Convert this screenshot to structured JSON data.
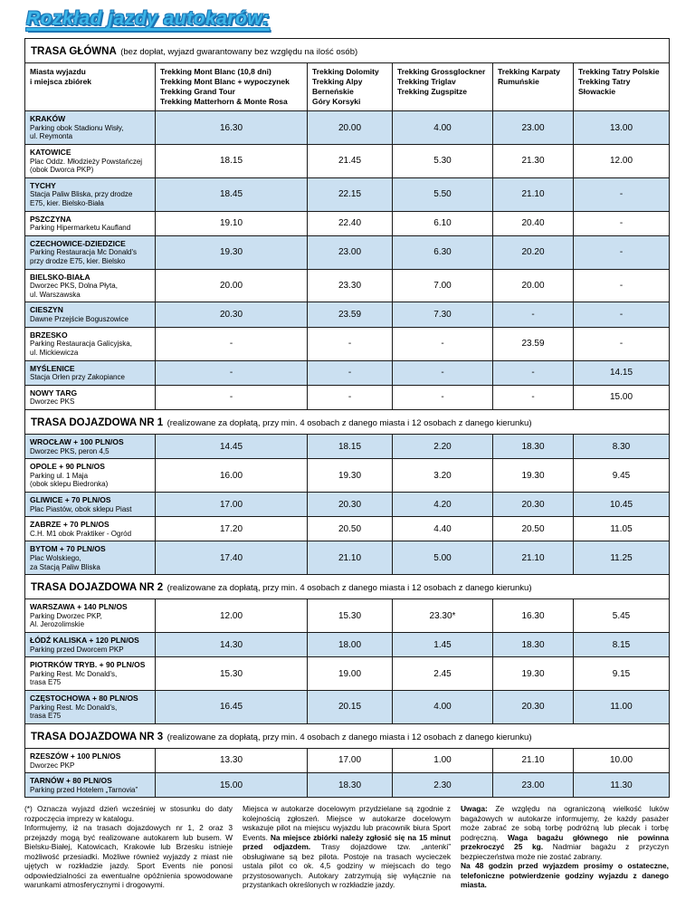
{
  "title": "Rozkład jazdy autokarów:",
  "table": {
    "main_section": {
      "title": "TRASA GŁÓWNA",
      "subtitle": "(bez dopłat, wyjazd gwarantowany bez względu na ilość osób)"
    },
    "columns": [
      "Miasta wyjazdu\ni miejsca zbiórek",
      "Trekking Mont Blanc (10,8 dni)\nTrekking Mont Blanc + wypoczynek\nTrekking Grand Tour\nTrekking Matterhorn & Monte Rosa",
      "Trekking Dolomity\nTrekking Alpy Berneńskie\nGóry Korsyki",
      "Trekking Grossglockner\nTrekking Triglav\nTrekking Zugspitze",
      "Trekking Karpaty\nRumuńskie",
      "Trekking Tatry Polskie\nTrekking Tatry Słowackie"
    ],
    "colors": {
      "zebra_blue": "#cbe0f1",
      "zebra_white": "#ffffff"
    },
    "sections": [
      {
        "header": null,
        "rows": [
          {
            "city": "KRAKÓW",
            "place": "Parking obok Stadionu Wisły,\nul. Reymonta",
            "values": [
              "16.30",
              "20.00",
              "4.00",
              "23.00",
              "13.00"
            ]
          },
          {
            "city": "KATOWICE",
            "place": "Plac Oddz. Młodzieży Powstańczej\n(obok Dworca PKP)",
            "values": [
              "18.15",
              "21.45",
              "5.30",
              "21.30",
              "12.00"
            ]
          },
          {
            "city": "TYCHY",
            "place": "Stacja Paliw Bliska, przy drodze\nE75, kier. Bielsko-Biała",
            "values": [
              "18.45",
              "22.15",
              "5.50",
              "21.10",
              "-"
            ]
          },
          {
            "city": "PSZCZYNA",
            "place": "Parking Hipermarketu Kaufland",
            "values": [
              "19.10",
              "22.40",
              "6.10",
              "20.40",
              "-"
            ]
          },
          {
            "city": "CZECHOWICE-DZIEDZICE",
            "place": "Parking Restauracja Mc Donald's\nprzy drodze E75, kier. Bielsko",
            "values": [
              "19.30",
              "23.00",
              "6.30",
              "20.20",
              "-"
            ]
          },
          {
            "city": "BIELSKO-BIAŁA",
            "place": "Dworzec PKS, Dolna Płyta,\nul. Warszawska",
            "values": [
              "20.00",
              "23.30",
              "7.00",
              "20.00",
              "-"
            ]
          },
          {
            "city": "CIESZYN",
            "place": "Dawne Przejście Boguszowice",
            "values": [
              "20.30",
              "23.59",
              "7.30",
              "-",
              "-"
            ]
          },
          {
            "city": "BRZESKO",
            "place": "Parking Restauracja Galicyjska,\nul. Mickiewicza",
            "values": [
              "-",
              "-",
              "-",
              "23.59",
              "-"
            ]
          },
          {
            "city": "MYŚLENICE",
            "place": "Stacja Orlen przy Zakopiance",
            "values": [
              "-",
              "-",
              "-",
              "-",
              "14.15"
            ]
          },
          {
            "city": "NOWY TARG",
            "place": "Dworzec PKS",
            "values": [
              "-",
              "-",
              "-",
              "-",
              "15.00"
            ]
          }
        ]
      },
      {
        "header": {
          "title": "TRASA DOJAZDOWA NR 1",
          "subtitle": "(realizowane za dopłatą, przy min. 4 osobach z danego miasta i 12 osobach z danego kierunku)"
        },
        "rows": [
          {
            "city": "WROCŁAW + 100 PLN/OS",
            "place": "Dworzec PKS, peron 4,5",
            "values": [
              "14.45",
              "18.15",
              "2.20",
              "18.30",
              "8.30"
            ]
          },
          {
            "city": "OPOLE + 90 PLN/OS",
            "place": "Parking ul. 1 Maja\n(obok sklepu Biedronka)",
            "values": [
              "16.00",
              "19.30",
              "3.20",
              "19.30",
              "9.45"
            ]
          },
          {
            "city": "GLIWICE + 70 PLN/OS",
            "place": "Plac Piastów, obok sklepu Piast",
            "values": [
              "17.00",
              "20.30",
              "4.20",
              "20.30",
              "10.45"
            ]
          },
          {
            "city": "ZABRZE + 70 PLN/OS",
            "place": "C.H. M1 obok Praktiker - Ogród",
            "values": [
              "17.20",
              "20.50",
              "4.40",
              "20.50",
              "11.05"
            ]
          },
          {
            "city": "BYTOM + 70 PLN/OS",
            "place": "Plac Wolskiego,\nza Stacją Paliw Bliska",
            "values": [
              "17.40",
              "21.10",
              "5.00",
              "21.10",
              "11.25"
            ]
          }
        ]
      },
      {
        "header": {
          "title": "TRASA DOJAZDOWA NR 2",
          "subtitle": "(realizowane za dopłatą, przy min. 4 osobach z danego miasta i 12 osobach z danego kierunku)"
        },
        "rows": [
          {
            "city": "WARSZAWA + 140 PLN/OS",
            "place": "Parking Dworzec PKP,\nAl. Jerozolimskie",
            "values": [
              "12.00",
              "15.30",
              "23.30*",
              "16.30",
              "5.45"
            ]
          },
          {
            "city": "ŁÓDŹ KALISKA + 120 PLN/OS",
            "place": "Parking przed Dworcem PKP",
            "values": [
              "14.30",
              "18.00",
              "1.45",
              "18.30",
              "8.15"
            ]
          },
          {
            "city": "PIOTRKÓW TRYB. + 90 PLN/OS",
            "place": "Parking Rest. Mc Donald's,\ntrasa E75",
            "values": [
              "15.30",
              "19.00",
              "2.45",
              "19.30",
              "9.15"
            ]
          },
          {
            "city": "CZĘSTOCHOWA + 80 PLN/OS",
            "place": "Parking Rest. Mc Donald's,\ntrasa E75",
            "values": [
              "16.45",
              "20.15",
              "4.00",
              "20.30",
              "11.00"
            ]
          }
        ]
      },
      {
        "header": {
          "title": "TRASA DOJAZDOWA NR 3",
          "subtitle": "(realizowane za dopłatą, przy min. 4 osobach z danego miasta i 12 osobach z danego kierunku)"
        },
        "rows": [
          {
            "city": "RZESZÓW + 100 PLN/OS",
            "place": "Dworzec PKP",
            "values": [
              "13.30",
              "17.00",
              "1.00",
              "21.10",
              "10.00"
            ]
          },
          {
            "city": "TARNÓW + 80 PLN/OS",
            "place": "Parking przed Hotelem „Tarnovia”",
            "values": [
              "15.00",
              "18.30",
              "2.30",
              "23.00",
              "11.30"
            ]
          }
        ]
      }
    ]
  },
  "footer": {
    "col1": [
      {
        "text": "(*) Oznacza wyjazd dzień wcześniej w stosunku do daty rozpoczęcia imprezy w katalogu.\nInformujemy, iż na trasach dojazdowych nr 1, 2 oraz 3 przejazdy mogą być realizowane autokarem lub busem. W Bielsku-Białej, Katowicach, Krakowie lub Brzesku istnieje możliwość przesiadki. Możliwe również wyjazdy z miast nie ujętych w rozkładzie jazdy. Sport Events nie ponosi odpowiedzialności za ewentualne opóźnienia spowodowane warunkami atmosferycznymi i drogowymi.",
        "bold": false
      }
    ],
    "col2": [
      {
        "text": "Miejsca w autokarze docelowym przydzielane są zgodnie z kolejnością zgłoszeń. Miejsce w autokarze docelowym wskazuje pilot na miejscu wyjazdu lub pracownik biura Sport Events. ",
        "bold": false
      },
      {
        "text": "Na miejsce zbiórki należy zgłosić się na 15 minut przed odjazdem.",
        "bold": true
      },
      {
        "text": " Trasy dojazdowe tzw. „antenki” obsługiwane są bez pilota. Postoje na trasach wycieczek ustala pilot co ok. 4,5 godziny w miejscach do tego przystosowanych. Autokary zatrzymują się wyłącznie na przystankach określonych w rozkładzie jazdy.",
        "bold": false
      }
    ],
    "col3": [
      {
        "text": "Uwaga:",
        "bold": true
      },
      {
        "text": " Ze względu na ograniczoną wielkość luków bagażowych w autokarze informujemy, że każdy pasażer może zabrać ze sobą torbę podróżną lub plecak i torbę podręczną. ",
        "bold": false
      },
      {
        "text": "Waga bagażu głównego nie powinna przekroczyć 25 kg.",
        "bold": true
      },
      {
        "text": " Nadmiar bagażu z przyczyn bezpieczeństwa może nie zostać zabrany.\n",
        "bold": false
      },
      {
        "text": "Na 48 godzin przed wyjazdem prosimy o ostateczne, telefoniczne potwierdzenie godziny wyjazdu z danego miasta.",
        "bold": true
      }
    ]
  }
}
